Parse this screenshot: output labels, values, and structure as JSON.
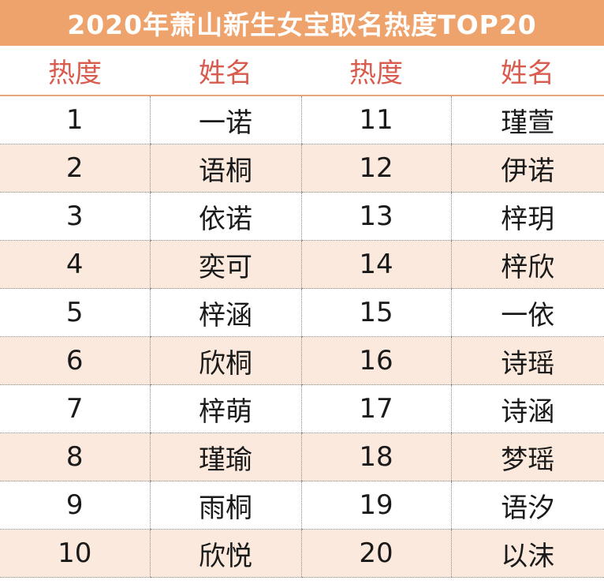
{
  "title": "2020年萧山新生女宝取名热度TOP20",
  "headers": [
    "热度",
    "姓名",
    "热度",
    "姓名"
  ],
  "rows": [
    {
      "rank_a": "1",
      "name_a": "一诺",
      "rank_b": "11",
      "name_b": "瑾萱"
    },
    {
      "rank_a": "2",
      "name_a": "语桐",
      "rank_b": "12",
      "name_b": "伊诺"
    },
    {
      "rank_a": "3",
      "name_a": "依诺",
      "rank_b": "13",
      "name_b": "梓玥"
    },
    {
      "rank_a": "4",
      "name_a": "奕可",
      "rank_b": "14",
      "name_b": "梓欣"
    },
    {
      "rank_a": "5",
      "name_a": "梓涵",
      "rank_b": "15",
      "name_b": "一依"
    },
    {
      "rank_a": "6",
      "name_a": "欣桐",
      "rank_b": "16",
      "name_b": "诗瑶"
    },
    {
      "rank_a": "7",
      "name_a": "梓萌",
      "rank_b": "17",
      "name_b": "诗涵"
    },
    {
      "rank_a": "8",
      "name_a": "瑾瑜",
      "rank_b": "18",
      "name_b": "梦瑶"
    },
    {
      "rank_a": "9",
      "name_a": "雨桐",
      "rank_b": "19",
      "name_b": "语汐"
    },
    {
      "rank_a": "10",
      "name_a": "欣悦",
      "rank_b": "20",
      "name_b": "以沫"
    }
  ],
  "colors": {
    "title_bg": "#eea36c",
    "header_text": "#d95b4e",
    "stripe": "#fbe9dd"
  }
}
